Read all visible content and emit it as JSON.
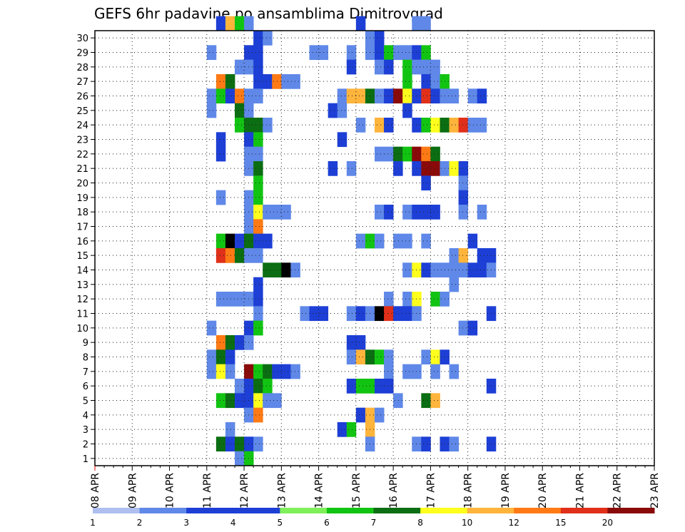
{
  "chart_data": {
    "type": "heatmap",
    "title": "GEFS 6hr padavine po ansamblima Dimitrovgrad",
    "xlabel": "",
    "ylabel": "",
    "x_ticks": [
      "08 APR",
      "09 APR",
      "10 APR",
      "11 APR",
      "12 APR",
      "13 APR",
      "14 APR",
      "15 APR",
      "16 APR",
      "17 APR",
      "18 APR",
      "19 APR",
      "20 APR",
      "21 APR",
      "22 APR",
      "23 APR"
    ],
    "y_ticks": [
      "1",
      "2",
      "3",
      "4",
      "5",
      "6",
      "7",
      "8",
      "9",
      "10",
      "11",
      "12",
      "13",
      "14",
      "15",
      "16",
      "17",
      "18",
      "19",
      "20",
      "21",
      "22",
      "23",
      "24",
      "25",
      "26",
      "27",
      "28",
      "29",
      "30"
    ],
    "grid": true,
    "color_scale": {
      "labels": [
        "1",
        "2",
        "3",
        "4",
        "5",
        "6",
        "7",
        "8",
        "10",
        "12",
        "15",
        "20"
      ],
      "colors": [
        "#aebff0",
        "#5f88e8",
        "#1d3fd6",
        "#1d3fd6",
        "#7ff05a",
        "#12c412",
        "#0b6e12",
        "#ffff1e",
        "#ffb43c",
        "#ff7a14",
        "#e0301a",
        "#8a0a0a"
      ]
    },
    "cells": [
      [
        "30",
        13,
        3
      ],
      [
        "30",
        14,
        8
      ],
      [
        "30",
        15,
        5
      ],
      [
        "30",
        16,
        1
      ],
      [
        "30",
        28,
        2
      ],
      [
        "30",
        34,
        1
      ],
      [
        "30",
        35,
        1
      ],
      [
        "29",
        17,
        2
      ],
      [
        "29",
        18,
        1
      ],
      [
        "29",
        29,
        1
      ],
      [
        "29",
        30,
        2
      ],
      [
        "28",
        12,
        1
      ],
      [
        "28",
        16,
        3
      ],
      [
        "28",
        17,
        2
      ],
      [
        "28",
        23,
        1
      ],
      [
        "28",
        24,
        1
      ],
      [
        "28",
        27,
        1
      ],
      [
        "28",
        29,
        1
      ],
      [
        "28",
        30,
        2
      ],
      [
        "28",
        31,
        5
      ],
      [
        "28",
        32,
        1
      ],
      [
        "28",
        33,
        1
      ],
      [
        "28",
        34,
        3
      ],
      [
        "28",
        35,
        5
      ],
      [
        "27",
        15,
        1
      ],
      [
        "27",
        16,
        1
      ],
      [
        "27",
        17,
        2
      ],
      [
        "27",
        27,
        2
      ],
      [
        "27",
        30,
        1
      ],
      [
        "27",
        31,
        3
      ],
      [
        "27",
        33,
        5
      ],
      [
        "27",
        34,
        1
      ],
      [
        "27",
        35,
        1
      ],
      [
        "27",
        36,
        1
      ],
      [
        "26",
        13,
        9
      ],
      [
        "26",
        14,
        6
      ],
      [
        "26",
        17,
        2
      ],
      [
        "26",
        18,
        2
      ],
      [
        "26",
        19,
        9
      ],
      [
        "26",
        20,
        1
      ],
      [
        "26",
        21,
        1
      ],
      [
        "26",
        33,
        5
      ],
      [
        "26",
        35,
        2
      ],
      [
        "26",
        36,
        1
      ],
      [
        "26",
        37,
        5
      ],
      [
        "25",
        12,
        1
      ],
      [
        "25",
        13,
        5
      ],
      [
        "25",
        14,
        3
      ],
      [
        "25",
        15,
        9
      ],
      [
        "25",
        16,
        1
      ],
      [
        "25",
        17,
        1
      ],
      [
        "25",
        26,
        1
      ],
      [
        "25",
        27,
        8
      ],
      [
        "25",
        28,
        8
      ],
      [
        "25",
        29,
        6
      ],
      [
        "25",
        30,
        1
      ],
      [
        "25",
        31,
        2
      ],
      [
        "25",
        32,
        11
      ],
      [
        "25",
        33,
        7
      ],
      [
        "25",
        34,
        2
      ],
      [
        "25",
        35,
        10
      ],
      [
        "25",
        36,
        3
      ],
      [
        "25",
        37,
        1
      ],
      [
        "25",
        38,
        1
      ],
      [
        "25",
        40,
        1
      ],
      [
        "25",
        41,
        2
      ],
      [
        "24",
        12,
        1
      ],
      [
        "24",
        15,
        6
      ],
      [
        "24",
        16,
        1
      ],
      [
        "24",
        25,
        3
      ],
      [
        "24",
        26,
        1
      ],
      [
        "24",
        33,
        2
      ],
      [
        "23",
        15,
        5
      ],
      [
        "23",
        16,
        6
      ],
      [
        "23",
        17,
        6
      ],
      [
        "23",
        18,
        1
      ],
      [
        "23",
        28,
        1
      ],
      [
        "23",
        30,
        8
      ],
      [
        "23",
        31,
        2
      ],
      [
        "23",
        34,
        3
      ],
      [
        "23",
        35,
        5
      ],
      [
        "23",
        36,
        7
      ],
      [
        "23",
        37,
        6
      ],
      [
        "23",
        38,
        8
      ],
      [
        "23",
        39,
        10
      ],
      [
        "23",
        40,
        1
      ],
      [
        "23",
        41,
        1
      ],
      [
        "22",
        13,
        3
      ],
      [
        "22",
        16,
        2
      ],
      [
        "22",
        17,
        5
      ],
      [
        "22",
        26,
        2
      ],
      [
        "21",
        13,
        2
      ],
      [
        "21",
        16,
        1
      ],
      [
        "21",
        17,
        1
      ],
      [
        "21",
        30,
        1
      ],
      [
        "21",
        31,
        1
      ],
      [
        "21",
        32,
        6
      ],
      [
        "21",
        33,
        5
      ],
      [
        "21",
        34,
        11
      ],
      [
        "21",
        35,
        9
      ],
      [
        "21",
        36,
        6
      ],
      [
        "20",
        16,
        1
      ],
      [
        "20",
        17,
        6
      ],
      [
        "20",
        25,
        3
      ],
      [
        "20",
        27,
        1
      ],
      [
        "20",
        32,
        2
      ],
      [
        "20",
        34,
        3
      ],
      [
        "20",
        35,
        11
      ],
      [
        "20",
        36,
        11
      ],
      [
        "20",
        37,
        1
      ],
      [
        "20",
        38,
        7
      ],
      [
        "20",
        39,
        2
      ],
      [
        "19",
        17,
        5
      ],
      [
        "19",
        35,
        2
      ],
      [
        "19",
        39,
        1
      ],
      [
        "18",
        13,
        1
      ],
      [
        "18",
        16,
        1
      ],
      [
        "18",
        17,
        5
      ],
      [
        "18",
        39,
        3
      ],
      [
        "17",
        16,
        1
      ],
      [
        "17",
        17,
        7
      ],
      [
        "17",
        18,
        1
      ],
      [
        "17",
        19,
        1
      ],
      [
        "17",
        20,
        1
      ],
      [
        "17",
        30,
        1
      ],
      [
        "17",
        31,
        2
      ],
      [
        "17",
        33,
        1
      ],
      [
        "17",
        34,
        2
      ],
      [
        "17",
        35,
        3
      ],
      [
        "17",
        36,
        2
      ],
      [
        "17",
        39,
        1
      ],
      [
        "17",
        41,
        1
      ],
      [
        "16",
        16,
        1
      ],
      [
        "16",
        17,
        9
      ],
      [
        "15",
        13,
        5
      ],
      [
        "15",
        14,
        12
      ],
      [
        "15",
        15,
        3
      ],
      [
        "15",
        16,
        6
      ],
      [
        "15",
        17,
        3
      ],
      [
        "15",
        18,
        3
      ],
      [
        "15",
        28,
        1
      ],
      [
        "15",
        29,
        5
      ],
      [
        "15",
        30,
        1
      ],
      [
        "15",
        32,
        1
      ],
      [
        "15",
        33,
        1
      ],
      [
        "15",
        35,
        1
      ],
      [
        "15",
        40,
        2
      ],
      [
        "14",
        13,
        10
      ],
      [
        "14",
        14,
        9
      ],
      [
        "14",
        15,
        6
      ],
      [
        "14",
        16,
        1
      ],
      [
        "14",
        17,
        1
      ],
      [
        "14",
        38,
        1
      ],
      [
        "14",
        39,
        8
      ],
      [
        "14",
        41,
        2
      ],
      [
        "14",
        42,
        2
      ],
      [
        "13",
        18,
        6
      ],
      [
        "13",
        19,
        6
      ],
      [
        "13",
        20,
        12
      ],
      [
        "13",
        21,
        1
      ],
      [
        "13",
        33,
        1
      ],
      [
        "13",
        34,
        7
      ],
      [
        "13",
        35,
        3
      ],
      [
        "13",
        36,
        1
      ],
      [
        "13",
        37,
        1
      ],
      [
        "13",
        38,
        1
      ],
      [
        "13",
        39,
        1
      ],
      [
        "13",
        40,
        3
      ],
      [
        "13",
        41,
        3
      ],
      [
        "13",
        42,
        1
      ],
      [
        "12",
        17,
        2
      ],
      [
        "12",
        38,
        1
      ],
      [
        "11",
        13,
        1
      ],
      [
        "11",
        14,
        1
      ],
      [
        "11",
        15,
        1
      ],
      [
        "11",
        16,
        1
      ],
      [
        "11",
        17,
        3
      ],
      [
        "11",
        31,
        1
      ],
      [
        "11",
        33,
        1
      ],
      [
        "11",
        34,
        7
      ],
      [
        "11",
        36,
        5
      ],
      [
        "11",
        37,
        1
      ],
      [
        "10",
        17,
        1
      ],
      [
        "10",
        22,
        1
      ],
      [
        "10",
        23,
        2
      ],
      [
        "10",
        24,
        2
      ],
      [
        "10",
        27,
        1
      ],
      [
        "10",
        28,
        3
      ],
      [
        "10",
        29,
        1
      ],
      [
        "10",
        30,
        12
      ],
      [
        "10",
        31,
        10
      ],
      [
        "10",
        32,
        3
      ],
      [
        "10",
        33,
        2
      ],
      [
        "10",
        34,
        1
      ],
      [
        "10",
        42,
        2
      ],
      [
        "9",
        12,
        1
      ],
      [
        "9",
        16,
        3
      ],
      [
        "9",
        17,
        5
      ],
      [
        "9",
        39,
        1
      ],
      [
        "9",
        40,
        2
      ],
      [
        "8",
        13,
        9
      ],
      [
        "8",
        14,
        6
      ],
      [
        "8",
        15,
        2
      ],
      [
        "8",
        16,
        1
      ],
      [
        "8",
        27,
        3
      ],
      [
        "8",
        28,
        3
      ],
      [
        "7",
        12,
        1
      ],
      [
        "7",
        13,
        6
      ],
      [
        "7",
        14,
        3
      ],
      [
        "7",
        27,
        1
      ],
      [
        "7",
        28,
        8
      ],
      [
        "7",
        29,
        6
      ],
      [
        "7",
        30,
        5
      ],
      [
        "7",
        31,
        1
      ],
      [
        "7",
        35,
        1
      ],
      [
        "7",
        36,
        7
      ],
      [
        "7",
        37,
        2
      ],
      [
        "6",
        12,
        1
      ],
      [
        "6",
        13,
        7
      ],
      [
        "6",
        14,
        1
      ],
      [
        "6",
        16,
        11
      ],
      [
        "6",
        17,
        5
      ],
      [
        "6",
        18,
        6
      ],
      [
        "6",
        19,
        3
      ],
      [
        "6",
        20,
        3
      ],
      [
        "6",
        21,
        1
      ],
      [
        "6",
        31,
        1
      ],
      [
        "6",
        33,
        1
      ],
      [
        "6",
        34,
        1
      ],
      [
        "6",
        36,
        1
      ],
      [
        "6",
        38,
        1
      ],
      [
        "5",
        15,
        1
      ],
      [
        "5",
        16,
        3
      ],
      [
        "5",
        17,
        6
      ],
      [
        "5",
        18,
        5
      ],
      [
        "5",
        27,
        2
      ],
      [
        "5",
        28,
        5
      ],
      [
        "5",
        29,
        5
      ],
      [
        "5",
        30,
        2
      ],
      [
        "5",
        31,
        2
      ],
      [
        "5",
        42,
        2
      ],
      [
        "4",
        13,
        5
      ],
      [
        "4",
        14,
        6
      ],
      [
        "4",
        15,
        2
      ],
      [
        "4",
        16,
        2
      ],
      [
        "4",
        17,
        7
      ],
      [
        "4",
        18,
        1
      ],
      [
        "4",
        19,
        1
      ],
      [
        "4",
        32,
        1
      ],
      [
        "4",
        35,
        6
      ],
      [
        "4",
        36,
        8
      ],
      [
        "3",
        16,
        1
      ],
      [
        "3",
        17,
        9
      ],
      [
        "3",
        28,
        2
      ],
      [
        "3",
        29,
        8
      ],
      [
        "3",
        30,
        1
      ],
      [
        "2",
        14,
        1
      ],
      [
        "2",
        26,
        2
      ],
      [
        "2",
        27,
        5
      ],
      [
        "2",
        29,
        8
      ],
      [
        "1",
        13,
        6
      ],
      [
        "1",
        14,
        3
      ],
      [
        "1",
        15,
        6
      ],
      [
        "1",
        16,
        3
      ],
      [
        "1",
        17,
        1
      ],
      [
        "1",
        29,
        1
      ],
      [
        "1",
        34,
        1
      ],
      [
        "1",
        35,
        3
      ],
      [
        "1",
        37,
        2
      ],
      [
        "1",
        38,
        1
      ],
      [
        "1",
        42,
        2
      ],
      [
        "0",
        15,
        1
      ],
      [
        "0",
        16,
        5
      ]
    ]
  }
}
